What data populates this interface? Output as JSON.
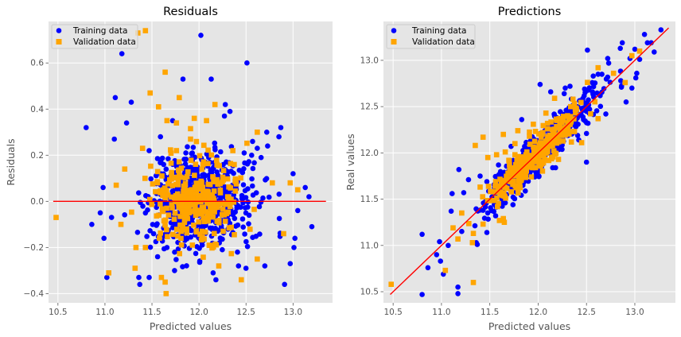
{
  "colors": {
    "training": "#0000ff",
    "validation": "#ffa500",
    "line": "#ff0000",
    "panel_bg": "#e5e5e5",
    "grid": "#ffffff"
  },
  "chart_data": [
    {
      "type": "scatter",
      "title": "Residuals",
      "xlabel": "Predicted values",
      "ylabel": "Residuals",
      "xlim": [
        10.4,
        13.42
      ],
      "ylim": [
        -0.44,
        0.78
      ],
      "xticks": [
        10.5,
        11.0,
        11.5,
        12.0,
        12.5,
        13.0
      ],
      "xtick_labels": [
        "10.5",
        "11.0",
        "11.5",
        "12.0",
        "12.5",
        "13.0"
      ],
      "yticks": [
        -0.4,
        -0.2,
        0.0,
        0.2,
        0.4,
        0.6
      ],
      "ytick_labels": [
        "−0.4",
        "−0.2",
        "0.0",
        "0.2",
        "0.4",
        "0.6"
      ],
      "grid": true,
      "legend_position": "top-left",
      "series": [
        {
          "name": "Training data",
          "marker": "circle",
          "color": "#0000ff",
          "points": [
            [
              12.02,
              0.72
            ],
            [
              11.18,
              0.64
            ],
            [
              12.51,
              0.6
            ],
            [
              11.83,
              0.53
            ],
            [
              12.13,
              0.53
            ],
            [
              11.11,
              0.45
            ],
            [
              11.28,
              0.43
            ],
            [
              12.28,
              0.42
            ],
            [
              12.33,
              0.39
            ],
            [
              12.27,
              0.37
            ],
            [
              11.72,
              0.35
            ],
            [
              11.23,
              0.34
            ],
            [
              10.8,
              0.32
            ],
            [
              12.87,
              0.32
            ],
            [
              12.72,
              0.3
            ],
            [
              11.59,
              0.28
            ],
            [
              11.1,
              0.27
            ],
            [
              12.57,
              0.26
            ],
            [
              11.47,
              0.22
            ],
            [
              12.48,
              0.21
            ],
            [
              11.86,
              0.21
            ],
            [
              12.62,
              0.23
            ],
            [
              12.85,
              0.28
            ],
            [
              12.73,
              0.24
            ],
            [
              12.66,
              0.19
            ],
            [
              12.56,
              0.2
            ],
            [
              10.98,
              0.06
            ],
            [
              10.86,
              -0.1
            ],
            [
              10.95,
              -0.05
            ],
            [
              11.07,
              -0.07
            ],
            [
              10.99,
              -0.16
            ],
            [
              11.02,
              -0.33
            ],
            [
              11.36,
              -0.33
            ],
            [
              11.37,
              -0.36
            ],
            [
              11.47,
              -0.33
            ],
            [
              11.74,
              -0.3
            ],
            [
              11.56,
              -0.24
            ],
            [
              11.66,
              -0.2
            ],
            [
              12.15,
              -0.31
            ],
            [
              12.18,
              -0.34
            ],
            [
              12.42,
              -0.28
            ],
            [
              12.5,
              -0.29
            ],
            [
              12.7,
              -0.28
            ],
            [
              12.91,
              -0.36
            ],
            [
              12.97,
              -0.27
            ],
            [
              13.02,
              -0.16
            ],
            [
              13.01,
              -0.2
            ],
            [
              13.2,
              -0.11
            ],
            [
              13.0,
              0.12
            ],
            [
              13.13,
              0.06
            ],
            [
              13.05,
              -0.04
            ],
            [
              13.17,
              0.02
            ]
          ],
          "cluster": {
            "x_center": 12.02,
            "x_spread": 0.27,
            "y_spread": 0.1,
            "count": 620,
            "seed": 7
          }
        },
        {
          "name": "Validation data",
          "marker": "square",
          "color": "#ffa500",
          "points": [
            [
              11.43,
              0.74
            ],
            [
              11.35,
              0.73
            ],
            [
              11.64,
              0.56
            ],
            [
              11.48,
              0.47
            ],
            [
              11.79,
              0.45
            ],
            [
              12.17,
              0.42
            ],
            [
              11.57,
              0.41
            ],
            [
              11.66,
              0.35
            ],
            [
              11.95,
              0.36
            ],
            [
              12.08,
              0.35
            ],
            [
              11.76,
              0.34
            ],
            [
              12.62,
              0.3
            ],
            [
              11.91,
              0.27
            ],
            [
              11.76,
              0.22
            ],
            [
              11.4,
              0.23
            ],
            [
              12.36,
              0.22
            ],
            [
              11.21,
              0.14
            ],
            [
              11.12,
              0.07
            ],
            [
              10.48,
              -0.07
            ],
            [
              11.17,
              -0.1
            ],
            [
              11.04,
              -0.31
            ],
            [
              11.32,
              -0.29
            ],
            [
              11.33,
              -0.2
            ],
            [
              11.43,
              -0.2
            ],
            [
              11.6,
              -0.33
            ],
            [
              11.64,
              -0.35
            ],
            [
              11.65,
              -0.4
            ],
            [
              12.21,
              -0.28
            ],
            [
              12.45,
              -0.34
            ],
            [
              12.62,
              -0.25
            ],
            [
              12.9,
              -0.14
            ],
            [
              12.97,
              0.08
            ],
            [
              13.05,
              0.05
            ],
            [
              12.78,
              0.08
            ]
          ],
          "cluster": {
            "x_center": 11.98,
            "x_spread": 0.24,
            "y_spread": 0.095,
            "count": 300,
            "seed": 13
          }
        }
      ],
      "reference_line": {
        "color": "#ff0000",
        "x": [
          10.45,
          13.35
        ],
        "y": [
          0.0,
          0.0
        ]
      }
    },
    {
      "type": "scatter",
      "title": "Predictions",
      "xlabel": "Predicted values",
      "ylabel": "Real values",
      "xlim": [
        10.4,
        13.42
      ],
      "ylim": [
        10.38,
        13.42
      ],
      "xticks": [
        10.5,
        11.0,
        11.5,
        12.0,
        12.5,
        13.0
      ],
      "xtick_labels": [
        "10.5",
        "11.0",
        "11.5",
        "12.0",
        "12.5",
        "13.0"
      ],
      "yticks": [
        10.5,
        11.0,
        11.5,
        12.0,
        12.5,
        13.0
      ],
      "ytick_labels": [
        "10.5",
        "11.0",
        "11.5",
        "12.0",
        "12.5",
        "13.0"
      ],
      "grid": true,
      "legend_position": "top-left",
      "series": [
        {
          "name": "Training data",
          "marker": "circle",
          "color": "#0000ff",
          "points": [
            [
              12.02,
              12.74
            ],
            [
              11.18,
              11.82
            ],
            [
              12.51,
              13.11
            ],
            [
              11.83,
              12.36
            ],
            [
              12.13,
              12.66
            ],
            [
              11.11,
              11.56
            ],
            [
              11.28,
              11.71
            ],
            [
              12.28,
              12.7
            ],
            [
              12.33,
              12.72
            ],
            [
              12.27,
              12.64
            ],
            [
              11.72,
              12.07
            ],
            [
              11.23,
              11.57
            ],
            [
              10.8,
              11.12
            ],
            [
              12.87,
              13.19
            ],
            [
              12.72,
              13.02
            ],
            [
              11.59,
              11.87
            ],
            [
              11.1,
              11.37
            ],
            [
              12.57,
              12.83
            ],
            [
              11.47,
              11.69
            ],
            [
              12.48,
              12.69
            ],
            [
              11.86,
              12.07
            ],
            [
              12.62,
              12.85
            ],
            [
              12.85,
              13.13
            ],
            [
              12.73,
              12.97
            ],
            [
              12.66,
              12.85
            ],
            [
              12.56,
              12.76
            ],
            [
              10.98,
              11.04
            ],
            [
              10.86,
              10.76
            ],
            [
              10.95,
              10.9
            ],
            [
              11.07,
              11.0
            ],
            [
              10.99,
              10.83
            ],
            [
              11.02,
              10.69
            ],
            [
              11.36,
              11.03
            ],
            [
              11.37,
              11.01
            ],
            [
              11.47,
              11.14
            ],
            [
              11.74,
              11.44
            ],
            [
              11.56,
              11.32
            ],
            [
              11.66,
              11.46
            ],
            [
              12.15,
              11.84
            ],
            [
              12.18,
              11.84
            ],
            [
              12.42,
              12.14
            ],
            [
              12.5,
              12.21
            ],
            [
              12.7,
              12.42
            ],
            [
              12.91,
              12.55
            ],
            [
              12.97,
              12.7
            ],
            [
              13.02,
              12.86
            ],
            [
              13.01,
              12.81
            ],
            [
              13.2,
              13.09
            ],
            [
              13.0,
              13.12
            ],
            [
              13.13,
              13.19
            ],
            [
              13.05,
              13.01
            ],
            [
              13.17,
              13.19
            ],
            [
              11.17,
              10.55
            ],
            [
              11.17,
              10.48
            ],
            [
              10.8,
              10.47
            ],
            [
              11.4,
              11.75
            ],
            [
              12.5,
              11.9
            ],
            [
              13.27,
              13.33
            ],
            [
              13.1,
              13.28
            ],
            [
              12.95,
              13.02
            ]
          ],
          "cluster": {
            "x_center": 12.02,
            "x_spread": 0.27,
            "y_spread": 0.1,
            "count": 620,
            "seed": 7
          }
        },
        {
          "name": "Validation data",
          "marker": "square",
          "color": "#ffa500",
          "points": [
            [
              11.43,
              12.17
            ],
            [
              11.35,
              12.08
            ],
            [
              11.64,
              12.2
            ],
            [
              11.48,
              11.95
            ],
            [
              11.79,
              12.24
            ],
            [
              12.17,
              12.59
            ],
            [
              11.57,
              11.98
            ],
            [
              11.66,
              12.01
            ],
            [
              11.95,
              12.31
            ],
            [
              12.08,
              12.43
            ],
            [
              11.76,
              12.1
            ],
            [
              12.62,
              12.92
            ],
            [
              11.91,
              12.18
            ],
            [
              11.76,
              11.98
            ],
            [
              11.4,
              11.63
            ],
            [
              12.36,
              12.58
            ],
            [
              11.21,
              11.35
            ],
            [
              11.12,
              11.19
            ],
            [
              10.48,
              10.58
            ],
            [
              11.17,
              11.07
            ],
            [
              11.04,
              10.73
            ],
            [
              11.32,
              11.03
            ],
            [
              11.33,
              11.13
            ],
            [
              11.43,
              11.23
            ],
            [
              11.6,
              11.27
            ],
            [
              11.64,
              11.29
            ],
            [
              11.65,
              11.25
            ],
            [
              12.21,
              11.93
            ],
            [
              12.45,
              12.11
            ],
            [
              12.62,
              12.37
            ],
            [
              12.9,
              12.76
            ],
            [
              12.97,
              13.05
            ],
            [
              13.05,
              13.1
            ],
            [
              12.78,
              12.86
            ],
            [
              11.33,
              10.6
            ]
          ],
          "cluster": {
            "x_center": 11.98,
            "x_spread": 0.24,
            "y_spread": 0.095,
            "count": 300,
            "seed": 13
          }
        }
      ],
      "reference_line": {
        "color": "#ff0000",
        "x": [
          10.47,
          13.35
        ],
        "y": [
          10.47,
          13.35
        ]
      }
    }
  ]
}
